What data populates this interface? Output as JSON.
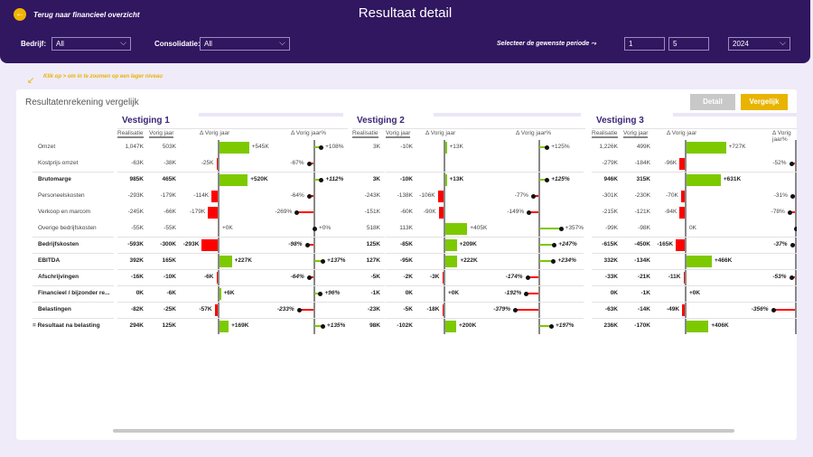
{
  "header": {
    "back_label": "Terug naar financieel overzicht",
    "title": "Resultaat detail",
    "bedrijf_label": "Bedrijf:",
    "bedrijf_value": "All",
    "consolidatie_label": "Consolidatie:",
    "consolidatie_value": "All",
    "periode_label": "Selecteer de gewenste periode",
    "periode_from": "1",
    "periode_to": "5",
    "year": "2024"
  },
  "hint": "Klik op > om in te zoomen op een lager niveau",
  "card": {
    "title": "Resultatenrekening vergelijk",
    "detail_button": "Detail",
    "vergelijk_button": "Vergelijk"
  },
  "columns": {
    "realisatie": "Realisatie",
    "vorig_jaar": "Vorig jaar",
    "delta": "Δ Vorig jaar",
    "delta_pct": "Δ Vorig jaar%"
  },
  "rows": [
    {
      "label": "Omzet",
      "bold": false
    },
    {
      "label": "Kostprijs omzet",
      "bold": false
    },
    {
      "label": "Brutomarge",
      "bold": true
    },
    {
      "label": "Personeelskosten",
      "bold": false
    },
    {
      "label": "Verkoop en marcom",
      "bold": false
    },
    {
      "label": "Overige bedrijfskosten",
      "bold": false
    },
    {
      "label": "Bedrijfskosten",
      "bold": true
    },
    {
      "label": "EBITDA",
      "bold": true
    },
    {
      "label": "Afschrijvingen",
      "bold": true
    },
    {
      "label": "Financieel / bijzonder re...",
      "bold": true
    },
    {
      "label": "Belastingen",
      "bold": true
    },
    {
      "label": "= Resultaat na belasting",
      "bold": true
    }
  ],
  "colors": {
    "positive": "#7dc900",
    "negative": "#ff0000",
    "header_bg": "#311660",
    "accent": "#e8b400"
  },
  "sections": [
    {
      "name": "Vestiging 1",
      "data": [
        [
          "1,047K",
          "503K",
          545,
          108
        ],
        [
          "-63K",
          "-38K",
          -25,
          -67
        ],
        [
          "985K",
          "465K",
          520,
          112
        ],
        [
          "-293K",
          "-179K",
          -114,
          -64
        ],
        [
          "-245K",
          "-66K",
          -179,
          -269
        ],
        [
          "-55K",
          "-55K",
          0,
          0
        ],
        [
          "-593K",
          "-300K",
          -293,
          -98
        ],
        [
          "392K",
          "165K",
          227,
          137
        ],
        [
          "-16K",
          "-10K",
          -6,
          -64
        ],
        [
          "0K",
          "-6K",
          6,
          96
        ],
        [
          "-82K",
          "-25K",
          -57,
          -233
        ],
        [
          "294K",
          "125K",
          169,
          135
        ]
      ]
    },
    {
      "name": "Vestiging 2",
      "data": [
        [
          "3K",
          "-10K",
          13,
          125
        ],
        [
          null,
          null,
          null,
          null
        ],
        [
          "3K",
          "-10K",
          13,
          125
        ],
        [
          "-243K",
          "-138K",
          -106,
          -77
        ],
        [
          "-151K",
          "-60K",
          -90,
          -149
        ],
        [
          "518K",
          "113K",
          405,
          357
        ],
        [
          "125K",
          "-85K",
          209,
          247
        ],
        [
          "127K",
          "-95K",
          222,
          234
        ],
        [
          "-5K",
          "-2K",
          -3,
          -174
        ],
        [
          "-1K",
          "0K",
          0,
          -192
        ],
        [
          "-23K",
          "-5K",
          -18,
          -379
        ],
        [
          "98K",
          "-102K",
          200,
          197
        ]
      ]
    },
    {
      "name": "Vestiging 3",
      "data": [
        [
          "1,226K",
          "499K",
          727,
          null
        ],
        [
          "-279K",
          "-184K",
          -96,
          -52
        ],
        [
          "946K",
          "315K",
          631,
          null
        ],
        [
          "-301K",
          "-230K",
          -70,
          -31
        ],
        [
          "-215K",
          "-121K",
          -94,
          -78
        ],
        [
          "-99K",
          "-98K",
          0,
          0
        ],
        [
          "-615K",
          "-450K",
          -165,
          -37
        ],
        [
          "332K",
          "-134K",
          466,
          null
        ],
        [
          "-33K",
          "-21K",
          -11,
          -53
        ],
        [
          "0K",
          "-1K",
          0,
          null
        ],
        [
          "-63K",
          "-14K",
          -49,
          -356
        ],
        [
          "236K",
          "-170K",
          406,
          null
        ]
      ]
    }
  ]
}
